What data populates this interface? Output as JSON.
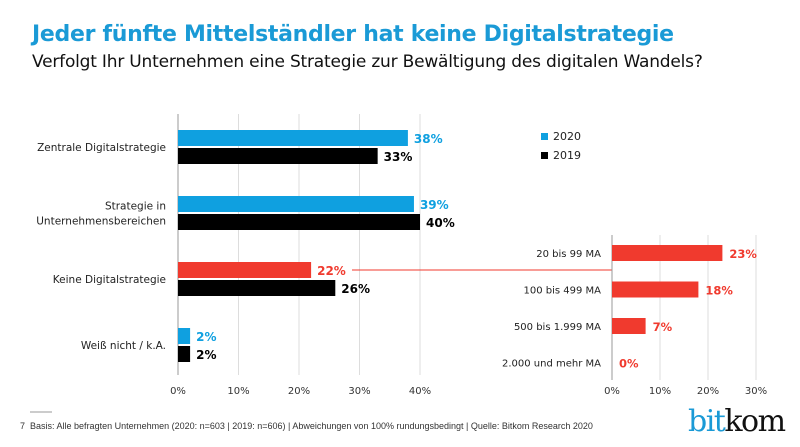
{
  "title": "Jeder fünfte Mittelständler hat keine Digitalstrategie",
  "subtitle": "Verfolgt Ihr Unternehmen eine Strategie zur Bewältigung des digitalen Wandels?",
  "footer": {
    "page": "7",
    "text": "Basis: Alle befragten Unternehmen (2020: n=603 | 2019: n=606) | Abweichungen von 100% rundungsbedingt | Quelle: Bitkom Research 2020"
  },
  "logo": {
    "part1": "bit",
    "part2": "kom"
  },
  "colors": {
    "2020": "#0fa0e0",
    "2019": "#000000",
    "highlight": "#f03a2e",
    "title": "#1a9ad6"
  },
  "chart_data": [
    {
      "type": "bar",
      "orientation": "horizontal",
      "categories": [
        [
          "Zentrale Digitalstrategie"
        ],
        [
          "Strategie in",
          "Unternehmensbereichen"
        ],
        [
          "Keine Digitalstrategie"
        ],
        [
          "Weiß nicht / k.A."
        ]
      ],
      "series": [
        {
          "name": "2020",
          "values": [
            38,
            39,
            22,
            2
          ]
        },
        {
          "name": "2019",
          "values": [
            33,
            40,
            26,
            2
          ]
        }
      ],
      "highlight": {
        "category_index": 2,
        "series": "2020"
      },
      "xlim": [
        0,
        40
      ],
      "xticks": [
        "0%",
        "10%",
        "20%",
        "30%",
        "40%"
      ],
      "legend": {
        "placement": "right",
        "entries": [
          "2020",
          "2019"
        ]
      },
      "grid": true
    },
    {
      "type": "bar",
      "orientation": "horizontal",
      "categories": [
        "20 bis 99 MA",
        "100 bis 499 MA",
        "500 bis 1.999 MA",
        "2.000 und mehr MA"
      ],
      "values": [
        23,
        18,
        7,
        0
      ],
      "xlim": [
        0,
        30
      ],
      "xticks": [
        "0%",
        "10%",
        "20%",
        "30%"
      ],
      "grid": true
    }
  ]
}
